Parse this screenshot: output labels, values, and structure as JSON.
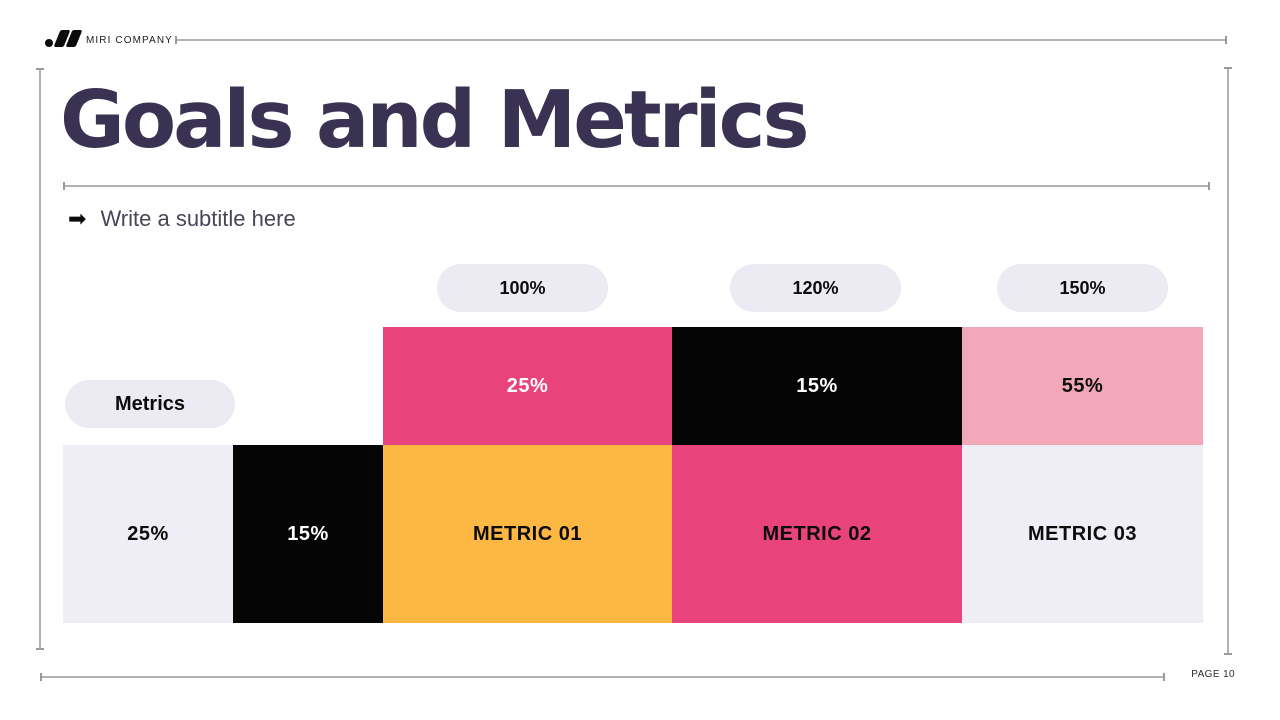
{
  "header": {
    "company": "MIRI COMPANY",
    "logo_icon": "dot-double-slash-logo"
  },
  "slide": {
    "title": "Goals and Metrics",
    "subtitle_icon": "➡",
    "subtitle": "Write a subtitle here"
  },
  "chart_data": {
    "type": "table",
    "title": "Goals and Metrics",
    "row_label": "Metrics",
    "goals": [
      "100%",
      "120%",
      "150%"
    ],
    "achieved": [
      "25%",
      "15%",
      "55%"
    ],
    "metrics": [
      "METRIC 01",
      "METRIC 02",
      "METRIC 03"
    ],
    "side_values": [
      "25%",
      "15%"
    ]
  },
  "footer": {
    "page_label": "PAGE 10"
  },
  "colors": {
    "title": "#3a3253",
    "subtitle": "#4a4458",
    "pill_bg": "#ecebf3",
    "pink": "#e8437a",
    "light_pink": "#f3a8ba",
    "orange": "#fcb843",
    "black": "#050505",
    "lavender": "#efeef6",
    "rule": "#b1b1b1"
  }
}
